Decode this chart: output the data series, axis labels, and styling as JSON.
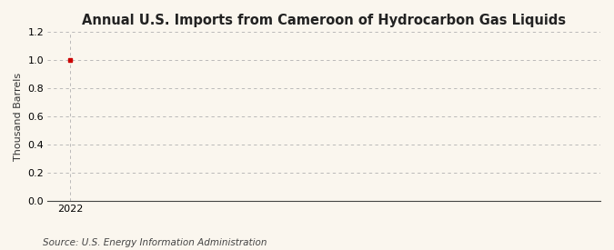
{
  "title": "Annual U.S. Imports from Cameroon of Hydrocarbon Gas Liquids",
  "ylabel": "Thousand Barrels",
  "source": "Source: U.S. Energy Information Administration",
  "x_values": [
    2022
  ],
  "y_values": [
    1.0
  ],
  "ylim": [
    0.0,
    1.2
  ],
  "yticks": [
    0.0,
    0.2,
    0.4,
    0.6,
    0.8,
    1.0,
    1.2
  ],
  "xlim": [
    2021.7,
    2029.0
  ],
  "xticks": [
    2022
  ],
  "background_color": "#faf6ee",
  "plot_bg_color": "#faf6ee",
  "grid_color": "#b0b0b0",
  "data_color": "#cc0000",
  "title_fontsize": 10.5,
  "ylabel_fontsize": 8,
  "tick_fontsize": 8,
  "source_fontsize": 7.5
}
